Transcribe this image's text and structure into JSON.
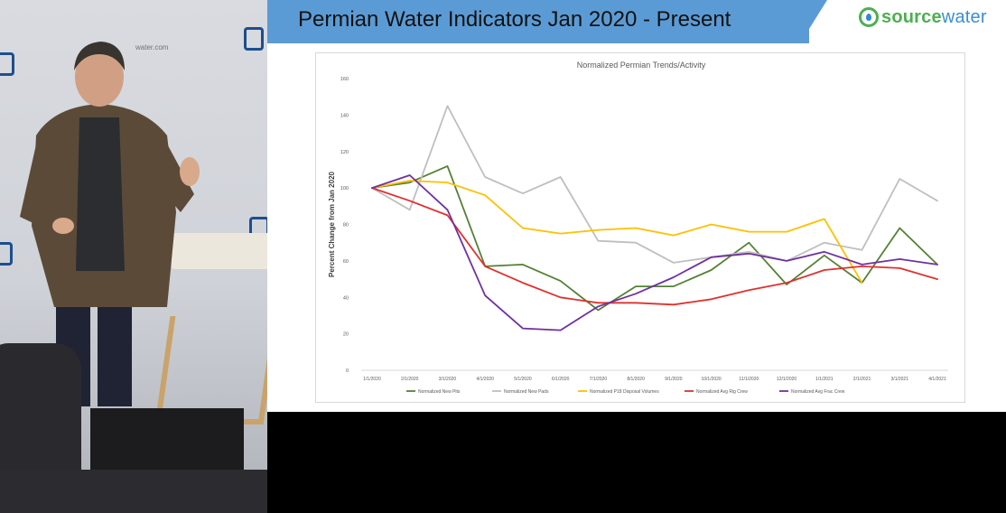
{
  "slide": {
    "title": "Permian Water Indicators Jan 2020 - Present",
    "logo_part1": "source",
    "logo_part2": "water"
  },
  "backdrop": {
    "text": "water.com"
  },
  "colors": {
    "title_bar": "#5b9bd5",
    "logo_green": "#4caf50",
    "logo_blue": "#3a8dd8"
  },
  "chart_data": {
    "type": "line",
    "title": "Normalized Permian Trends/Activity",
    "xlabel": "",
    "ylabel": "Percent Change from Jan 2020",
    "ylim": [
      0,
      160
    ],
    "yticks": [
      0,
      20,
      40,
      60,
      80,
      100,
      120,
      140,
      160
    ],
    "grid": false,
    "legend_position": "bottom",
    "x": [
      "1/1/2020",
      "2/1/2020",
      "3/1/2020",
      "4/1/2020",
      "5/1/2020",
      "6/1/2020",
      "7/1/2020",
      "8/1/2020",
      "9/1/2020",
      "10/1/2020",
      "11/1/2020",
      "12/1/2020",
      "1/1/2021",
      "2/1/2021",
      "3/1/2021",
      "4/1/2021"
    ],
    "series": [
      {
        "name": "Normalized New Pits",
        "color": "#548235",
        "values": [
          100,
          103,
          112,
          57,
          58,
          49,
          33,
          46,
          46,
          55,
          70,
          47,
          63,
          48,
          78,
          58
        ]
      },
      {
        "name": "Normalized New Pads",
        "color": "#bfbfbf",
        "values": [
          100,
          88,
          145,
          106,
          97,
          106,
          71,
          70,
          59,
          62,
          65,
          60,
          70,
          66,
          105,
          93
        ]
      },
      {
        "name": "Normalized P18 Disposal Volumes",
        "color": "#ffc000",
        "values": [
          100,
          104,
          103,
          96,
          78,
          75,
          77,
          78,
          74,
          80,
          76,
          76,
          83,
          48,
          null,
          null
        ]
      },
      {
        "name": "Normalized Avg Rig Crew",
        "color": "#e0312d",
        "values": [
          100,
          93,
          85,
          57,
          48,
          40,
          37,
          37,
          36,
          39,
          44,
          48,
          55,
          57,
          56,
          50
        ]
      },
      {
        "name": "Normalized Avg Frac Crew",
        "color": "#7030a0",
        "values": [
          100,
          107,
          88,
          41,
          23,
          22,
          35,
          42,
          51,
          62,
          64,
          60,
          65,
          58,
          61,
          58
        ]
      }
    ]
  }
}
